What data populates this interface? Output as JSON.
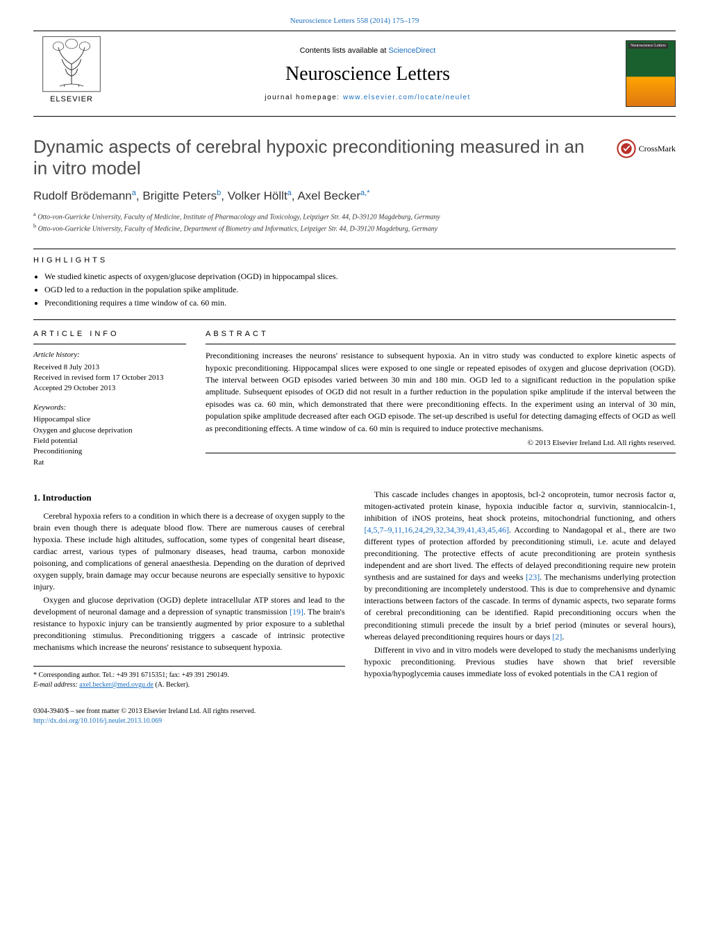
{
  "headerLink": "Neuroscience Letters 558 (2014) 175–179",
  "contentsLine": {
    "prefix": "Contents lists available at ",
    "link": "ScienceDirect"
  },
  "journalTitle": "Neuroscience Letters",
  "journalHomepage": {
    "prefix": "journal homepage: ",
    "url": "www.elsevier.com/locate/neulet"
  },
  "elsevierLabel": "ELSEVIER",
  "coverLabel": "Neuroscience Letters",
  "crossmarkLabel": "CrossMark",
  "articleTitle": "Dynamic aspects of cerebral hypoxic preconditioning measured in an in vitro model",
  "authors": [
    {
      "name": "Rudolf Brödemann",
      "aff": "a"
    },
    {
      "name": "Brigitte Peters",
      "aff": "b"
    },
    {
      "name": "Volker Höllt",
      "aff": "a"
    },
    {
      "name": "Axel Becker",
      "aff": "a,*"
    }
  ],
  "affiliations": [
    {
      "sup": "a",
      "text": "Otto-von-Guericke University, Faculty of Medicine, Institute of Pharmacology and Toxicology, Leipziger Str. 44, D-39120 Magdeburg, Germany"
    },
    {
      "sup": "b",
      "text": "Otto-von-Guericke University, Faculty of Medicine, Department of Biometry and Informatics, Leipziger Str. 44, D-39120 Magdeburg, Germany"
    }
  ],
  "highlightsLabel": "HIGHLIGHTS",
  "highlights": [
    "We studied kinetic aspects of oxygen/glucose deprivation (OGD) in hippocampal slices.",
    "OGD led to a reduction in the population spike amplitude.",
    "Preconditioning requires a time window of ca. 60 min."
  ],
  "articleInfoLabel": "ARTICLE INFO",
  "abstractLabel": "ABSTRACT",
  "historyLabel": "Article history:",
  "history": [
    "Received 8 July 2013",
    "Received in revised form 17 October 2013",
    "Accepted 29 October 2013"
  ],
  "keywordsLabel": "Keywords:",
  "keywords": [
    "Hippocampal slice",
    "Oxygen and glucose deprivation",
    "Field potential",
    "Preconditioning",
    "Rat"
  ],
  "abstract": "Preconditioning increases the neurons' resistance to subsequent hypoxia. An in vitro study was conducted to explore kinetic aspects of hypoxic preconditioning. Hippocampal slices were exposed to one single or repeated episodes of oxygen and glucose deprivation (OGD). The interval between OGD episodes varied between 30 min and 180 min. OGD led to a significant reduction in the population spike amplitude. Subsequent episodes of OGD did not result in a further reduction in the population spike amplitude if the interval between the episodes was ca. 60 min, which demonstrated that there were preconditioning effects. In the experiment using an interval of 30 min, population spike amplitude decreased after each OGD episode. The set-up described is useful for detecting damaging effects of OGD as well as preconditioning effects. A time window of ca. 60 min is required to induce protective mechanisms.",
  "abstractCopyright": "© 2013 Elsevier Ireland Ltd. All rights reserved.",
  "introHeading": "1.  Introduction",
  "introPara1": "Cerebral hypoxia refers to a condition in which there is a decrease of oxygen supply to the brain even though there is adequate blood flow. There are numerous causes of cerebral hypoxia. These include high altitudes, suffocation, some types of congenital heart disease, cardiac arrest, various types of pulmonary diseases, head trauma, carbon monoxide poisoning, and complications of general anaesthesia. Depending on the duration of deprived oxygen supply, brain damage may occur because neurons are especially sensitive to hypoxic injury.",
  "introPara2_a": "Oxygen and glucose deprivation (OGD) deplete intracellular ATP stores and lead to the development of neuronal damage and a depression of synaptic transmission ",
  "cite19": "[19]",
  "introPara2_b": ". The brain's resistance to hypoxic injury can be transiently augmented by prior exposure to a sublethal preconditioning stimulus. Preconditioning triggers a cascade of intrinsic protective mechanisms which increase the neurons' resistance to subsequent hypoxia.",
  "introPara3_a": "This cascade includes changes in apoptosis, bcl-2 oncoprotein, tumor necrosis factor α, mitogen-activated protein kinase, hypoxia inducible factor α, survivin, stanniocalcin-1, inhibition of iNOS proteins, heat shock proteins, mitochondrial functioning, and others ",
  "citeMany": "[4,5,7–9,11,16,24,29,32,34,39,41,43,45,46]",
  "introPara3_b": ". According to Nandagopal et al., there are two different types of protection afforded by preconditioning stimuli, i.e. acute and delayed preconditioning. The protective effects of acute preconditioning are protein synthesis independent and are short lived. The effects of delayed preconditioning require new protein synthesis and are sustained for days and weeks ",
  "cite23": "[23]",
  "introPara3_c": ". The mechanisms underlying protection by preconditioning are incompletely understood. This is due to comprehensive and dynamic interactions between factors of the cascade. In terms of dynamic aspects, two separate forms of cerebral preconditioning can be identified. Rapid preconditioning occurs when the preconditioning stimuli precede the insult by a brief period (minutes or several hours), whereas delayed preconditioning requires hours or days ",
  "cite2": "[2]",
  "introPara3_d": ".",
  "introPara4": "Different in vivo and in vitro models were developed to study the mechanisms underlying hypoxic preconditioning. Previous studies have shown that brief reversible hypoxia/hypoglycemia causes immediate loss of evoked potentials in the CA1 region of",
  "corresponding": {
    "label": "* Corresponding author. Tel.: +49 391 6715351; fax: +49 391 290149.",
    "emailLabel": "E-mail address: ",
    "email": "axel.becker@med.ovgu.de",
    "suffix": " (A. Becker)."
  },
  "footer": {
    "line1": "0304-3940/$ – see front matter © 2013 Elsevier Ireland Ltd. All rights reserved.",
    "doi": "http://dx.doi.org/10.1016/j.neulet.2013.10.069"
  },
  "colors": {
    "link": "#1a6ebf",
    "titleGray": "#4a4a4a",
    "text": "#000000",
    "coverGreen": "#1a5f2e",
    "coverOrange": "#ffa500"
  }
}
